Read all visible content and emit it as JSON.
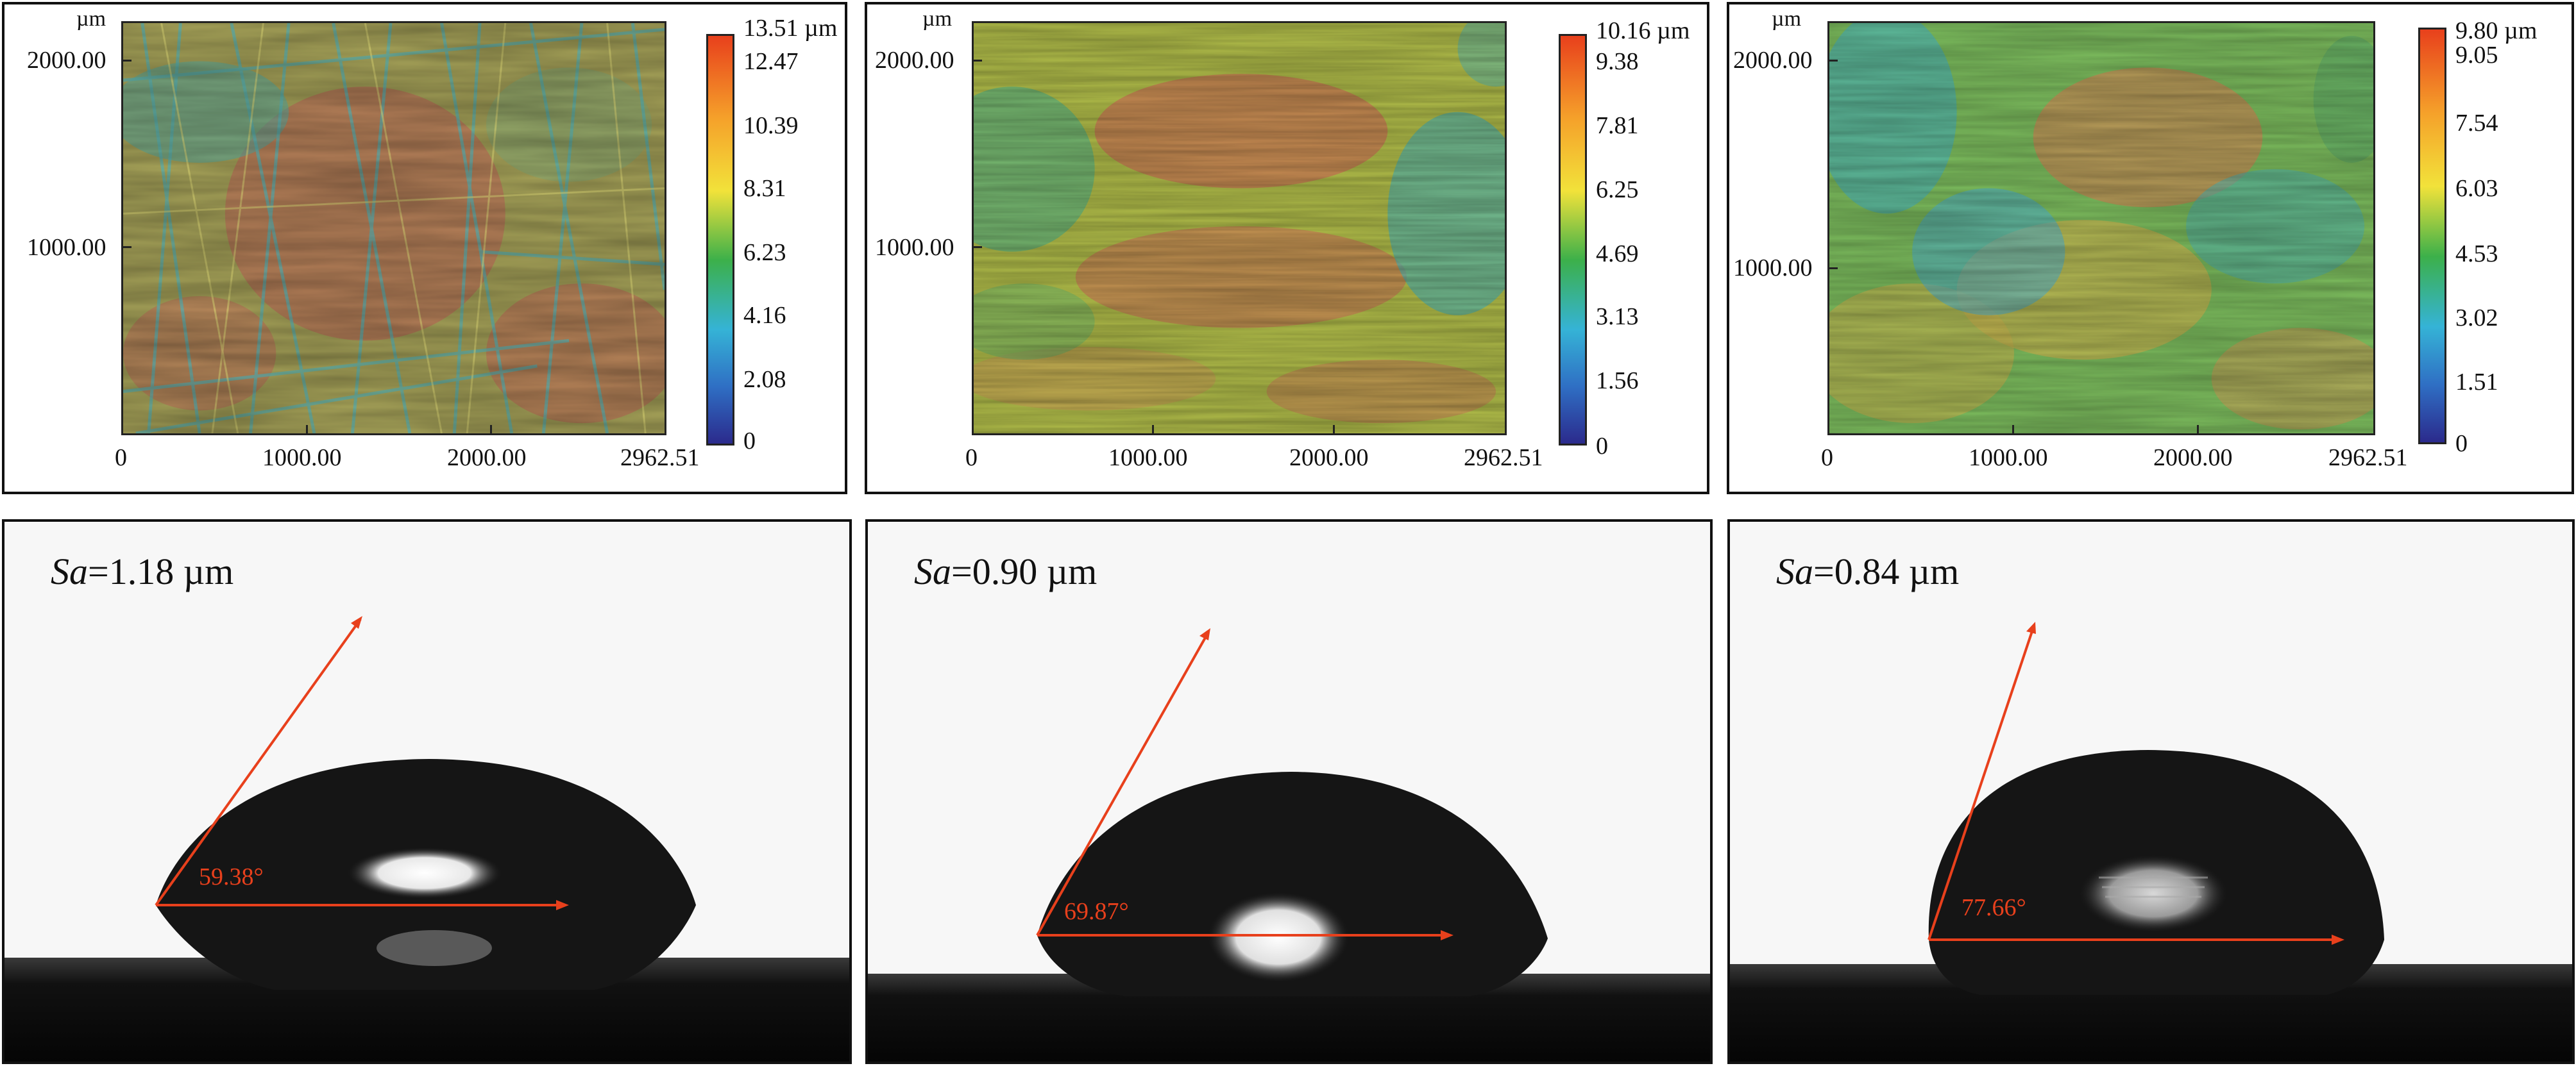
{
  "figure": {
    "surface_maps": [
      {
        "unit_label": "µm",
        "y_ticks": [
          "2000.00",
          "1000.00"
        ],
        "x_ticks": [
          "0",
          "1000.00",
          "2000.00",
          "2962.51"
        ],
        "colorbar_max": "13.51 µm",
        "colorbar_ticks": [
          "12.47",
          "10.39",
          "8.31",
          "6.23",
          "4.16",
          "2.08",
          "0"
        ],
        "texture": "scratched"
      },
      {
        "unit_label": "µm",
        "y_ticks": [
          "2000.00",
          "1000.00"
        ],
        "x_ticks": [
          "0",
          "1000.00",
          "2000.00",
          "2962.51"
        ],
        "colorbar_max": "10.16 µm",
        "colorbar_ticks": [
          "9.38",
          "7.81",
          "6.25",
          "4.69",
          "3.13",
          "1.56",
          "0"
        ],
        "texture": "smooth"
      },
      {
        "unit_label": "µm",
        "y_ticks": [
          "2000.00",
          "1000.00"
        ],
        "x_ticks": [
          "0",
          "1000.00",
          "2000.00",
          "2962.51"
        ],
        "colorbar_max": "9.80 µm",
        "colorbar_ticks": [
          "9.05",
          "7.54",
          "6.03",
          "4.53",
          "3.02",
          "1.51",
          "0"
        ],
        "texture": "smoothest"
      }
    ],
    "droplets": [
      {
        "sa_symbol": "Sa",
        "sa_value": "=1.18 µm",
        "contact_angle": "59.38°",
        "contact_angle_deg": 59.38
      },
      {
        "sa_symbol": "Sa",
        "sa_value": "=0.90 µm",
        "contact_angle": "69.87°",
        "contact_angle_deg": 69.87
      },
      {
        "sa_symbol": "Sa",
        "sa_value": "=0.84 µm",
        "contact_angle": "77.66°",
        "contact_angle_deg": 77.66
      }
    ],
    "colors": {
      "angle_annotation": "#e8401c",
      "colormap": [
        "#2b2a8c",
        "#2f6fc4",
        "#35b3d6",
        "#3cb04a",
        "#bcd63a",
        "#f2e23a",
        "#f5a02a",
        "#e8401c"
      ]
    }
  }
}
